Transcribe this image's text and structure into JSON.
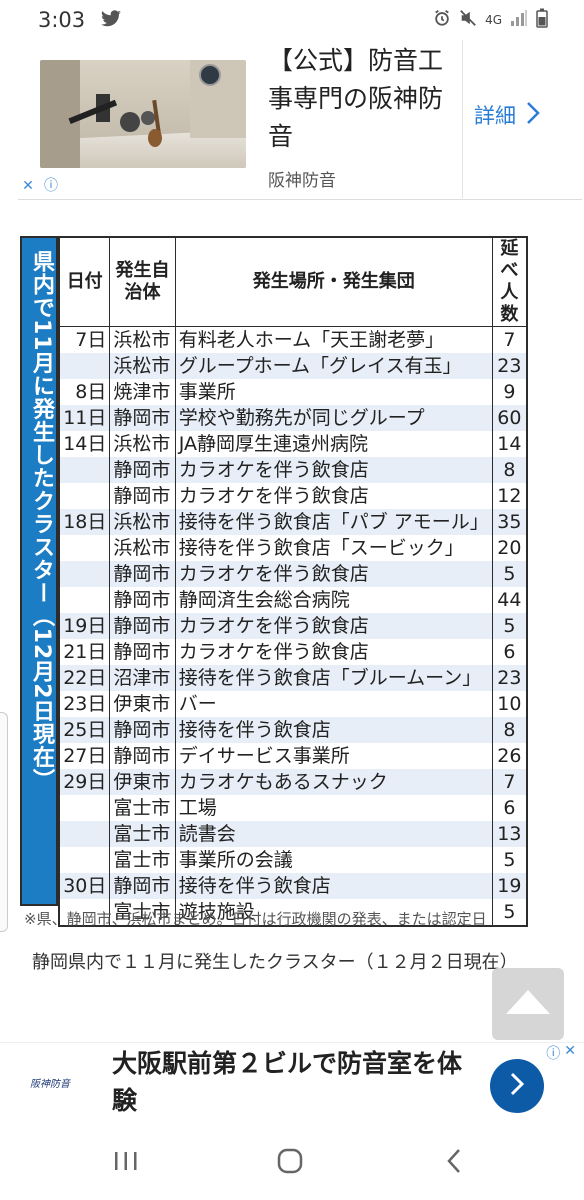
{
  "status_bar": {
    "time": "3:03",
    "network": "4G"
  },
  "ad_top": {
    "title": "【公式】防音工事専門の阪神防音",
    "brand": "阪神防音",
    "detail_label": "詳細",
    "adchoices_x": "✕",
    "adchoices_i": "ⓘ"
  },
  "figure": {
    "sidebar_title": "県内で11月に発生したクラスター（12月2日現在）",
    "headers": {
      "date": "日付",
      "city": "発生自治体",
      "place": "発生場所・発生集団",
      "count": "延べ人数"
    },
    "rows": [
      {
        "date": "7日",
        "city": "浜松市",
        "place": "有料老人ホーム「天王謝老夢」",
        "count": "7"
      },
      {
        "date": "",
        "city": "浜松市",
        "place": "グループホーム「グレイス有玉」",
        "count": "23"
      },
      {
        "date": "8日",
        "city": "焼津市",
        "place": "事業所",
        "count": "9"
      },
      {
        "date": "11日",
        "city": "静岡市",
        "place": "学校や勤務先が同じグループ",
        "count": "60"
      },
      {
        "date": "14日",
        "city": "浜松市",
        "place": "JA静岡厚生連遠州病院",
        "count": "14"
      },
      {
        "date": "",
        "city": "静岡市",
        "place": "カラオケを伴う飲食店",
        "count": "8"
      },
      {
        "date": "",
        "city": "静岡市",
        "place": "カラオケを伴う飲食店",
        "count": "12"
      },
      {
        "date": "18日",
        "city": "浜松市",
        "place": "接待を伴う飲食店「パブ アモール」",
        "count": "35"
      },
      {
        "date": "",
        "city": "浜松市",
        "place": "接待を伴う飲食店「スービック」",
        "count": "20"
      },
      {
        "date": "",
        "city": "静岡市",
        "place": "カラオケを伴う飲食店",
        "count": "5"
      },
      {
        "date": "",
        "city": "静岡市",
        "place": "静岡済生会総合病院",
        "count": "44"
      },
      {
        "date": "19日",
        "city": "静岡市",
        "place": "カラオケを伴う飲食店",
        "count": "5"
      },
      {
        "date": "21日",
        "city": "静岡市",
        "place": "カラオケを伴う飲食店",
        "count": "6"
      },
      {
        "date": "22日",
        "city": "沼津市",
        "place": "接待を伴う飲食店「ブルームーン」",
        "count": "23"
      },
      {
        "date": "23日",
        "city": "伊東市",
        "place": "バー",
        "count": "10"
      },
      {
        "date": "25日",
        "city": "静岡市",
        "place": "接待を伴う飲食店",
        "count": "8"
      },
      {
        "date": "27日",
        "city": "静岡市",
        "place": "デイサービス事業所",
        "count": "26"
      },
      {
        "date": "29日",
        "city": "伊東市",
        "place": "カラオケもあるスナック",
        "count": "7"
      },
      {
        "date": "",
        "city": "富士市",
        "place": "工場",
        "count": "6"
      },
      {
        "date": "",
        "city": "富士市",
        "place": "読書会",
        "count": "13"
      },
      {
        "date": "",
        "city": "富士市",
        "place": "事業所の会議",
        "count": "5"
      },
      {
        "date": "30日",
        "city": "静岡市",
        "place": "接待を伴う飲食店",
        "count": "19"
      },
      {
        "date": "",
        "city": "富士市",
        "place": "遊技施設",
        "count": "5"
      }
    ],
    "note": "※県、静岡市、浜松市まとめ。日付は行政機関の発表、または認定日"
  },
  "caption": "静岡県内で１１月に発生したクラスター（１２月２日現在）",
  "ad_bottom": {
    "logo": "阪神防音",
    "text": "大阪駅前第２ビルで防音室を体験",
    "adchoices_i": "ⓘ",
    "adchoices_x": "✕"
  },
  "icons": {
    "twitter": "twitter-icon",
    "scroll_top": "triangle-up-icon",
    "nav_recent": "recent-apps-icon",
    "nav_home": "home-icon",
    "nav_back": "back-icon"
  }
}
